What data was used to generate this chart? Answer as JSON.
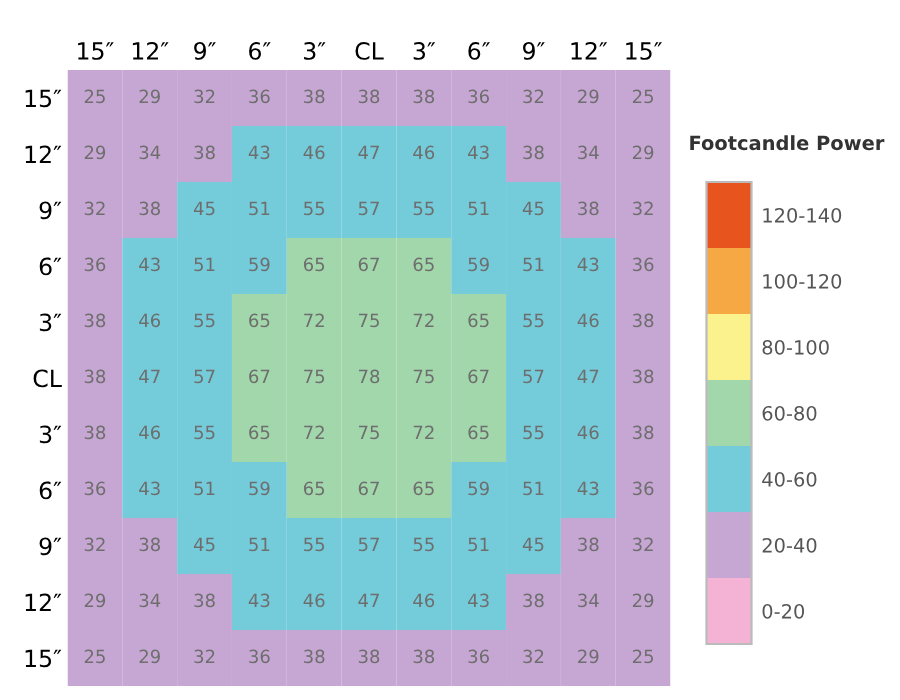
{
  "chart_data": {
    "type": "heatmap",
    "categories": [
      "15″",
      "12″",
      "9″",
      "6″",
      "3″",
      "CL",
      "3″",
      "6″",
      "9″",
      "12″",
      "15″"
    ],
    "y_categories": [
      "15″",
      "12″",
      "9″",
      "6″",
      "3″",
      "CL",
      "3″",
      "6″",
      "9″",
      "12″",
      "15″"
    ],
    "cells": [
      [
        25,
        29,
        32,
        36,
        38,
        38,
        38,
        36,
        32,
        29,
        25
      ],
      [
        29,
        34,
        38,
        43,
        46,
        47,
        46,
        43,
        38,
        34,
        29
      ],
      [
        32,
        38,
        45,
        51,
        55,
        57,
        55,
        51,
        45,
        38,
        32
      ],
      [
        36,
        43,
        51,
        59,
        65,
        67,
        65,
        59,
        51,
        43,
        36
      ],
      [
        38,
        46,
        55,
        65,
        72,
        75,
        72,
        65,
        55,
        46,
        38
      ],
      [
        38,
        47,
        57,
        67,
        75,
        78,
        75,
        67,
        57,
        47,
        38
      ],
      [
        38,
        46,
        55,
        65,
        72,
        75,
        72,
        65,
        55,
        46,
        38
      ],
      [
        36,
        43,
        51,
        59,
        65,
        67,
        65,
        59,
        51,
        43,
        36
      ],
      [
        32,
        38,
        45,
        51,
        55,
        57,
        55,
        51,
        45,
        38,
        32
      ],
      [
        29,
        34,
        38,
        43,
        46,
        47,
        46,
        43,
        38,
        34,
        29
      ],
      [
        25,
        29,
        32,
        36,
        38,
        38,
        38,
        36,
        32,
        29,
        25
      ]
    ],
    "data_labels": true,
    "clabel": "Footcandle Power",
    "clim": [
      0,
      140
    ],
    "colors": [
      "#f4b3d4",
      "#c6a6d2",
      "#74cbd9",
      "#a2d6ab",
      "#fbf28e",
      "#f5a843",
      "#e8541e"
    ],
    "cticks": [
      {
        "value": 130,
        "label": "120-140"
      },
      {
        "value": 110,
        "label": "100-120"
      },
      {
        "value": 90,
        "label": "80-100"
      },
      {
        "value": 70,
        "label": "60-80"
      },
      {
        "value": 50,
        "label": "40-60"
      },
      {
        "value": 30,
        "label": "20-40"
      },
      {
        "value": 10,
        "label": "0-20"
      }
    ]
  }
}
